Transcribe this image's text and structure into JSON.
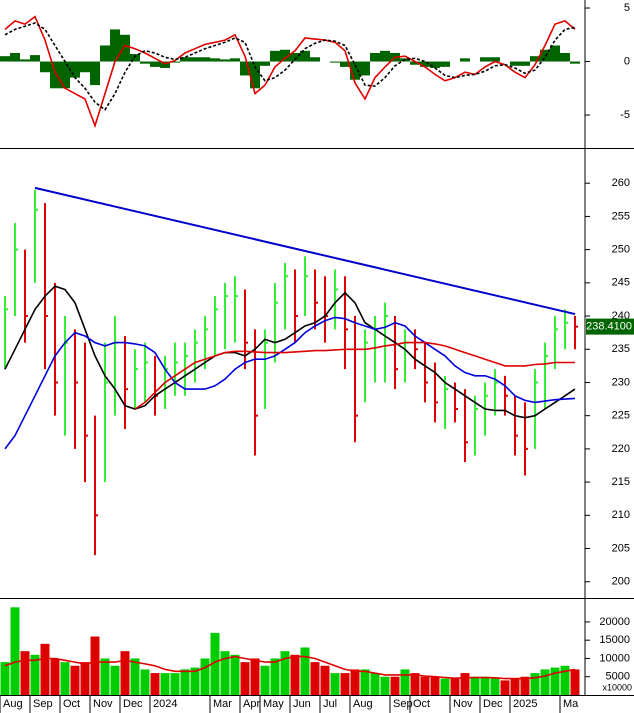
{
  "chart_data": [
    {
      "type": "macd",
      "ylim": [
        -7.8,
        5.75
      ],
      "yticks": [
        -5,
        0,
        5
      ],
      "series": [
        {
          "kind": "bar",
          "color": "#006400",
          "values": [
            0.5,
            0.8,
            0.2,
            0.6,
            -1,
            -2.5,
            -2.5,
            -1.5,
            -1,
            -2.2,
            1.5,
            3,
            2.5,
            0.7,
            -0.2,
            -0.5,
            -0.6,
            -0.1,
            0.4,
            0.4,
            0.4,
            0.3,
            0.2,
            0.3,
            -1.3,
            -2.5,
            -0.4,
            1,
            1.1,
            0.8,
            1,
            0.4,
            0,
            -0.1,
            -0.5,
            -1.7,
            -1.3,
            0.8,
            1,
            0.8,
            0.3,
            -0.3,
            -0.5,
            -0.6,
            -0.5,
            0,
            0.3,
            0,
            0.4,
            0.4,
            0,
            -0.4,
            -0.4,
            0.5,
            1.1,
            1.5,
            0.8,
            -0.2
          ]
        },
        {
          "kind": "line",
          "color": "#e00000",
          "values": [
            3,
            3.8,
            3.5,
            4.2,
            2,
            -1,
            -2.5,
            -3,
            -3.5,
            -6,
            -3,
            0,
            1.5,
            1.2,
            0.8,
            0.3,
            -0.2,
            0.1,
            0.8,
            1.2,
            1.6,
            1.8,
            2,
            2.5,
            0.5,
            -3,
            -2.2,
            -0.5,
            0.3,
            1,
            2.2,
            2.1,
            2,
            1.8,
            1,
            -2,
            -3.5,
            -1.5,
            -0.5,
            0.4,
            0.5,
            0,
            -0.5,
            -1.2,
            -1.8,
            -1.5,
            -1,
            -1.2,
            -0.5,
            0,
            -0.3,
            -1,
            -1.5,
            -0.3,
            1.5,
            3.5,
            3.8,
            3
          ]
        },
        {
          "kind": "dashed",
          "color": "#000000",
          "values": [
            2.5,
            3,
            3.3,
            3.6,
            3,
            1.5,
            0,
            -1.5,
            -2.5,
            -3.8,
            -4.5,
            -3,
            -1,
            0.5,
            1,
            0.8,
            0.4,
            0.2,
            0.4,
            0.8,
            1.2,
            1.5,
            1.8,
            2.2,
            1.8,
            -0.5,
            -1.8,
            -1.5,
            -0.8,
            0.2,
            1.2,
            1.7,
            2,
            1.9,
            1.5,
            -0.3,
            -2.2,
            -2.3,
            -1.5,
            -0.4,
            0.2,
            0.3,
            0,
            -0.6,
            -1.3,
            -1.5,
            -1.3,
            -1.2,
            -0.9,
            -0.4,
            -0.3,
            -0.6,
            -1.1,
            -0.8,
            0.4,
            2,
            3,
            3.2
          ]
        }
      ]
    },
    {
      "type": "ohlc",
      "ylim": [
        197.7,
        264.7
      ],
      "yticks": [
        200,
        205,
        210,
        215,
        220,
        225,
        230,
        235,
        240,
        245,
        250,
        255,
        260
      ],
      "up_color": "#33ee33",
      "down_color": "#dd0000",
      "high": [
        243,
        254,
        250,
        259,
        257,
        245,
        240,
        238,
        236,
        225,
        236,
        240,
        237,
        235,
        236,
        234,
        234,
        236,
        236,
        238,
        240,
        243,
        245,
        246,
        244,
        238,
        238,
        245,
        248,
        247,
        249,
        247,
        246,
        247,
        246,
        240,
        238,
        240,
        242,
        240,
        238,
        238,
        236,
        233,
        231,
        230,
        229,
        228,
        230,
        232,
        231,
        228,
        227,
        232,
        236,
        240,
        241,
        240
      ],
      "low": [
        232,
        240,
        236,
        245,
        232,
        225,
        222,
        220,
        215,
        204,
        215,
        225,
        223,
        226,
        227,
        225,
        226,
        228,
        228,
        230,
        232,
        234,
        235,
        236,
        232,
        219,
        226,
        233,
        238,
        236,
        240,
        238,
        236,
        238,
        232,
        221,
        227,
        230,
        230,
        229,
        230,
        232,
        227,
        224,
        223,
        224,
        218,
        219,
        222,
        225,
        225,
        219,
        216,
        220,
        226,
        232,
        235,
        235
      ],
      "close": [
        241,
        250,
        240,
        256,
        240,
        230,
        236,
        230,
        222,
        210,
        230,
        236,
        229,
        232,
        233,
        228,
        232,
        233,
        234,
        236,
        238,
        241,
        243,
        243,
        236,
        225,
        236,
        242,
        246,
        240,
        246,
        242,
        240,
        244,
        238,
        225,
        236,
        238,
        240,
        232,
        236,
        235,
        230,
        227,
        229,
        226,
        221,
        226,
        228,
        230,
        228,
        222,
        220,
        230,
        234,
        238,
        239,
        238.41
      ],
      "series": [
        {
          "color": "#000000",
          "values": [
            232,
            235,
            238,
            241,
            243,
            244.5,
            244,
            242,
            238,
            234,
            231,
            229,
            226.5,
            226,
            226.5,
            228,
            229,
            230,
            231,
            232,
            233,
            234,
            234.5,
            234.5,
            234,
            235,
            236.5,
            236,
            236.5,
            237.5,
            238.5,
            239,
            240,
            242,
            243.5,
            242,
            239,
            238,
            237,
            236,
            235,
            233.5,
            232.5,
            231.5,
            230,
            229,
            228,
            227,
            226,
            225.8,
            225.8,
            225,
            224.7,
            225,
            226,
            227,
            228,
            229
          ]
        },
        {
          "color": "#0000dd",
          "values": [
            220,
            222,
            225,
            228,
            231,
            234,
            236,
            237.5,
            237,
            236,
            235.5,
            236,
            236,
            235.8,
            235.5,
            234.5,
            232,
            230,
            229,
            229,
            229,
            229.5,
            230.5,
            232,
            233,
            233.5,
            233.5,
            234,
            235,
            236,
            237.5,
            238.5,
            239.3,
            239.8,
            239.6,
            239,
            238.5,
            238,
            238.3,
            239,
            238.5,
            237,
            236,
            235,
            234,
            232.5,
            231.5,
            231,
            231,
            230.5,
            229.5,
            228,
            227.3,
            227,
            227.2,
            227.4,
            227.5,
            227.6
          ]
        },
        {
          "color": "#dd0000",
          "values": [
            null,
            null,
            null,
            null,
            null,
            null,
            null,
            null,
            null,
            null,
            null,
            null,
            null,
            226,
            227,
            228.5,
            230,
            231,
            232,
            233,
            233.5,
            234,
            234.5,
            234.7,
            234.7,
            234.6,
            234.5,
            234.5,
            234.5,
            234.6,
            234.7,
            234.8,
            234.8,
            234.9,
            235,
            235,
            235,
            235.2,
            235.5,
            235.7,
            236,
            236,
            236,
            235.8,
            235.5,
            235,
            234.5,
            234,
            233.5,
            233,
            232.5,
            232.5,
            232.5,
            232.7,
            232.8,
            233,
            233,
            233
          ]
        }
      ],
      "trendline": {
        "color": "#0000cc",
        "x": [
          3.5,
          57.5
        ],
        "values": [
          259.3,
          240.3
        ]
      },
      "last_price": 238.41,
      "last_price_label": "238.4100"
    },
    {
      "type": "volume",
      "ylim": [
        0,
        26000
      ],
      "yticks": [
        5000,
        10000,
        15000,
        20000
      ],
      "up_color": "#00cc00",
      "down_color": "#dd0000",
      "values": [
        9000,
        24000,
        12000,
        11000,
        14000,
        10000,
        9000,
        8000,
        9000,
        16000,
        10000,
        8000,
        12000,
        10000,
        7000,
        6000,
        6000,
        6000,
        7000,
        7500,
        10000,
        17000,
        12000,
        11000,
        9000,
        10000,
        8000,
        10000,
        12000,
        11000,
        13000,
        9000,
        8000,
        6000,
        6000,
        7000,
        7000,
        6000,
        5000,
        5000,
        7000,
        6000,
        5000,
        5000,
        4500,
        4500,
        6000,
        5000,
        5000,
        4500,
        4000,
        4500,
        5000,
        6000,
        7000,
        7500,
        8000,
        7000
      ],
      "series": [
        {
          "color": "#e00000",
          "values": [
            8000,
            9000,
            9500,
            9500,
            10000,
            10000,
            9500,
            9000,
            8500,
            9000,
            9000,
            9000,
            9500,
            9000,
            8500,
            8000,
            7000,
            6500,
            6500,
            6500,
            7500,
            9000,
            10000,
            10500,
            10000,
            9500,
            9000,
            9000,
            10000,
            10500,
            10500,
            10000,
            9000,
            8000,
            7000,
            6500,
            6500,
            6000,
            5500,
            5500,
            5500,
            5500,
            5200,
            5000,
            4800,
            4600,
            4700,
            4800,
            4800,
            4700,
            4500,
            4500,
            4500,
            4700,
            5200,
            6000,
            6500,
            7000
          ]
        }
      ],
      "axis_note": "x10000",
      "categories": [
        "Aug",
        null,
        null,
        "Sep",
        null,
        null,
        "Oct",
        null,
        null,
        "Nov",
        null,
        null,
        "Dec",
        null,
        null,
        "2024",
        null,
        null,
        null,
        null,
        null,
        "Mar",
        null,
        null,
        "Apr",
        null,
        "May",
        null,
        null,
        "Jun",
        null,
        null,
        "Jul",
        null,
        null,
        "Aug",
        null,
        null,
        null,
        "Sep",
        null,
        "Oct",
        null,
        null,
        null,
        "Nov",
        null,
        null,
        "Dec",
        null,
        null,
        "2025",
        null,
        null,
        null,
        null,
        "Ma",
        null
      ]
    }
  ]
}
